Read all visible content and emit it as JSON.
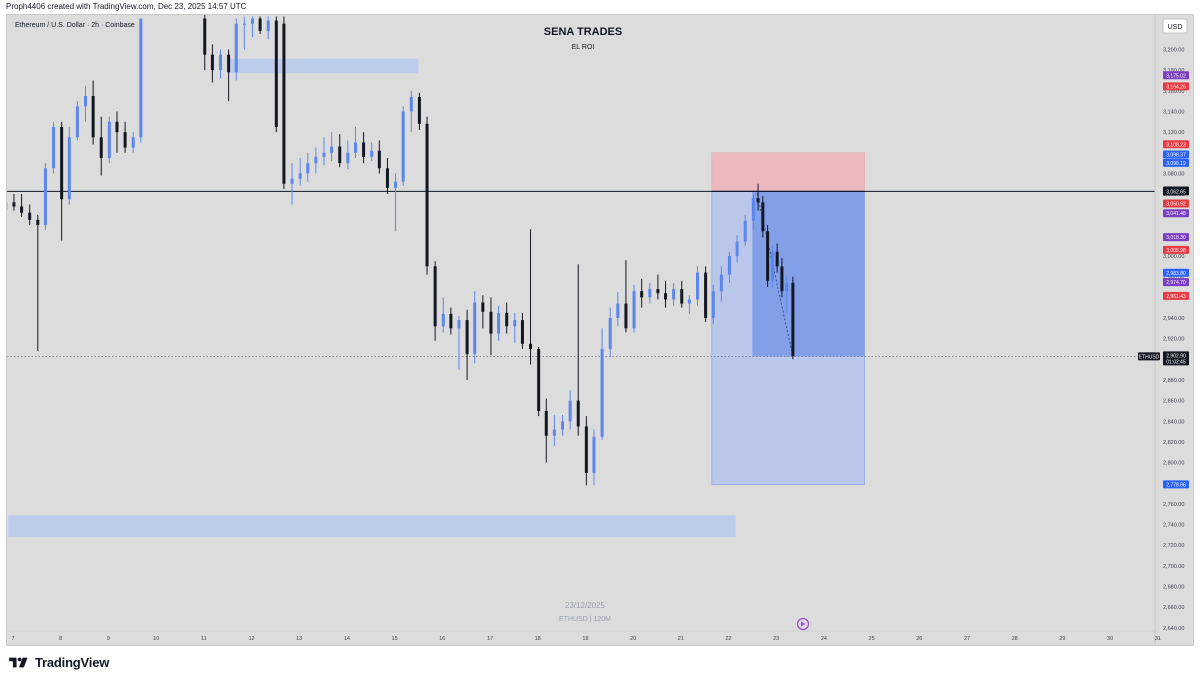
{
  "credit": "Proph4406 created with TradingView.com, Dec 23, 2025 14:57 UTC",
  "symbol_line": "Ethereum / U.S. Dollar · 2h · Coinbase",
  "headline": "SENA TRADES",
  "subheadline": "EL ROI",
  "currency_button": "USD",
  "watermark_date": "23/12/2025",
  "watermark_symbol": "ETHUSD | 120M",
  "brand": "TradingView",
  "icons": {
    "brand_logo": "tradingview-logo-icon",
    "replay": "replay-icon"
  },
  "colors": {
    "bull": "#5b86f0",
    "bear": "#131722",
    "target_zone": "#3d6ee3",
    "stop_zone": "#eeb4b8",
    "zones": "#b9c9ef",
    "price_tag_bg": "#131722"
  },
  "chart_data": {
    "type": "candlestick",
    "symbol": "ETHUSD",
    "timeframe": "2h",
    "exchange": "Coinbase",
    "ylim": [
      2620,
      3220
    ],
    "y_ticks": [
      "3,200.00",
      "3,180.00",
      "3,160.00",
      "3,140.00",
      "3,120.00",
      "3,100.00",
      "3,080.00",
      "3,060.00",
      "3,040.00",
      "3,020.00",
      "3,000.00",
      "2,980.00",
      "2,960.00",
      "2,940.00",
      "2,920.00",
      "2,900.00",
      "2,880.00",
      "2,860.00",
      "2,840.00",
      "2,820.00",
      "2,800.00",
      "2,780.00",
      "2,760.00",
      "2,740.00",
      "2,720.00",
      "2,700.00",
      "2,680.00",
      "2,660.00",
      "2,640.00"
    ],
    "x_ticks": [
      "7",
      "8",
      "9",
      "10",
      "11",
      "12",
      "13",
      "14",
      "15",
      "16",
      "17",
      "18",
      "19",
      "20",
      "21",
      "22",
      "23",
      "24",
      "25",
      "26",
      "27",
      "28",
      "29",
      "30",
      "31"
    ],
    "price_labels": [
      {
        "text": "3,175.02",
        "value": 3175.02,
        "color": "#7b3fc4"
      },
      {
        "text": "3,164.26",
        "value": 3164.26,
        "color": "#e53b43"
      },
      {
        "text": "3,108.23",
        "value": 3108.23,
        "color": "#e53b43"
      },
      {
        "text": "3,098.37",
        "value": 3098.37,
        "color": "#2962ff"
      },
      {
        "text": "3,090.19",
        "value": 3090.19,
        "color": "#2962ff"
      },
      {
        "text": "3,063.51",
        "value": 3063.51,
        "color": "#131722"
      },
      {
        "text": "3,062.65",
        "value": 3062.65,
        "color": "#131722"
      },
      {
        "text": "3,050.92",
        "value": 3050.92,
        "color": "#e53b43"
      },
      {
        "text": "3,041.48",
        "value": 3041.48,
        "color": "#7b3fc4"
      },
      {
        "text": "3,018.30",
        "value": 3018.3,
        "color": "#7b3fc4"
      },
      {
        "text": "3,005.98",
        "value": 3005.98,
        "color": "#e53b43"
      },
      {
        "text": "2,983.80",
        "value": 2983.8,
        "color": "#2962ff"
      },
      {
        "text": "2,974.70",
        "value": 2974.7,
        "color": "#7b3fc4"
      },
      {
        "text": "2,961.43",
        "value": 2961.43,
        "color": "#e53b43"
      },
      {
        "text": "2,778.86",
        "value": 2778.86,
        "color": "#2962ff"
      }
    ],
    "current_price": {
      "symbol": "ETHUSD",
      "price": "2,902.90",
      "countdown": "01:02:45",
      "value": 2902.9
    },
    "horizontal_line": 3062.65,
    "position": {
      "entry": 3062.65,
      "stop": 3100,
      "target": 2778.86,
      "start_day": 21.65,
      "end_day": 24.85
    },
    "zones": [
      {
        "from_day": 11.5,
        "to_day": 15.5,
        "low": 3177,
        "high": 3191
      },
      {
        "from_day": 6.9,
        "to_day": 22.15,
        "low": 2728,
        "high": 2749
      }
    ],
    "candles": [
      [
        6.85,
        3045,
        3058,
        3040,
        3052
      ],
      [
        7.02,
        3052,
        3060,
        3044,
        3048
      ],
      [
        7.18,
        3048,
        3060,
        3038,
        3042
      ],
      [
        7.35,
        3042,
        3050,
        3030,
        3035
      ],
      [
        7.52,
        3035,
        3040,
        2908,
        3030
      ],
      [
        7.68,
        3030,
        3090,
        3025,
        3085
      ],
      [
        7.85,
        3085,
        3130,
        3080,
        3125
      ],
      [
        8.02,
        3125,
        3130,
        3015,
        3055
      ],
      [
        8.18,
        3055,
        3125,
        3050,
        3115
      ],
      [
        8.35,
        3115,
        3150,
        3112,
        3145
      ],
      [
        8.52,
        3145,
        3165,
        3130,
        3155
      ],
      [
        8.68,
        3155,
        3170,
        3108,
        3115
      ],
      [
        8.85,
        3115,
        3135,
        3078,
        3095
      ],
      [
        9.02,
        3095,
        3135,
        3090,
        3130
      ],
      [
        9.18,
        3130,
        3140,
        3100,
        3120
      ],
      [
        9.35,
        3120,
        3130,
        3100,
        3105
      ],
      [
        9.52,
        3105,
        3120,
        3100,
        3115
      ],
      [
        9.68,
        3115,
        3230,
        3110,
        3230
      ],
      [
        11.02,
        3230,
        3235,
        3180,
        3195
      ],
      [
        11.18,
        3195,
        3205,
        3168,
        3180
      ],
      [
        11.35,
        3180,
        3200,
        3172,
        3195
      ],
      [
        11.52,
        3195,
        3200,
        3150,
        3178
      ],
      [
        11.68,
        3178,
        3230,
        3170,
        3225
      ],
      [
        11.85,
        3225,
        3232,
        3200,
        3225
      ],
      [
        12.02,
        3225,
        3232,
        3212,
        3230
      ],
      [
        12.18,
        3230,
        3232,
        3215,
        3218
      ],
      [
        12.35,
        3218,
        3232,
        3210,
        3228
      ],
      [
        12.52,
        3228,
        3232,
        3120,
        3125
      ],
      [
        12.68,
        3225,
        3232,
        3065,
        3070
      ],
      [
        12.85,
        3070,
        3090,
        3050,
        3075
      ],
      [
        13.02,
        3075,
        3095,
        3068,
        3080
      ],
      [
        13.18,
        3080,
        3100,
        3072,
        3090
      ],
      [
        13.35,
        3090,
        3105,
        3080,
        3096
      ],
      [
        13.52,
        3096,
        3115,
        3088,
        3100
      ],
      [
        13.68,
        3100,
        3120,
        3092,
        3106
      ],
      [
        13.85,
        3106,
        3118,
        3086,
        3090
      ],
      [
        14.02,
        3090,
        3112,
        3084,
        3100
      ],
      [
        14.18,
        3100,
        3125,
        3095,
        3110
      ],
      [
        14.35,
        3110,
        3120,
        3090,
        3096
      ],
      [
        14.52,
        3096,
        3110,
        3092,
        3102
      ],
      [
        14.68,
        3102,
        3112,
        3080,
        3085
      ],
      [
        14.85,
        3085,
        3095,
        3060,
        3066
      ],
      [
        15.02,
        3066,
        3080,
        3024,
        3072
      ],
      [
        15.18,
        3072,
        3145,
        3068,
        3140
      ],
      [
        15.35,
        3140,
        3160,
        3120,
        3154
      ],
      [
        15.52,
        3154,
        3158,
        3122,
        3128
      ],
      [
        15.68,
        3128,
        3135,
        2982,
        2990
      ],
      [
        15.85,
        2990,
        2995,
        2918,
        2932
      ],
      [
        16.02,
        2932,
        2960,
        2926,
        2944
      ],
      [
        16.18,
        2944,
        2950,
        2924,
        2930
      ],
      [
        16.35,
        2930,
        2942,
        2890,
        2938
      ],
      [
        16.52,
        2938,
        2948,
        2880,
        2905
      ],
      [
        16.68,
        2905,
        2966,
        2896,
        2955
      ],
      [
        16.85,
        2955,
        2962,
        2930,
        2946
      ],
      [
        17.02,
        2946,
        2960,
        2904,
        2925
      ],
      [
        17.18,
        2925,
        2952,
        2918,
        2945
      ],
      [
        17.35,
        2945,
        2955,
        2925,
        2932
      ],
      [
        17.52,
        2932,
        2945,
        2916,
        2938
      ],
      [
        17.68,
        2938,
        2945,
        2910,
        2915
      ],
      [
        17.85,
        2915,
        3026,
        2895,
        2910
      ],
      [
        18.02,
        2910,
        2912,
        2845,
        2850
      ],
      [
        18.18,
        2850,
        2862,
        2800,
        2826
      ],
      [
        18.35,
        2826,
        2846,
        2816,
        2832
      ],
      [
        18.52,
        2832,
        2846,
        2826,
        2840
      ],
      [
        18.68,
        2840,
        2870,
        2832,
        2860
      ],
      [
        18.85,
        2860,
        2992,
        2826,
        2835
      ],
      [
        19.02,
        2835,
        2845,
        2778,
        2790
      ],
      [
        19.18,
        2790,
        2832,
        2778,
        2825
      ],
      [
        19.35,
        2825,
        2930,
        2822,
        2910
      ],
      [
        19.52,
        2910,
        2950,
        2902,
        2940
      ],
      [
        19.68,
        2940,
        2965,
        2932,
        2954
      ],
      [
        19.85,
        2954,
        2996,
        2926,
        2930
      ],
      [
        20.02,
        2930,
        2972,
        2926,
        2966
      ],
      [
        20.18,
        2966,
        2978,
        2950,
        2960
      ],
      [
        20.35,
        2960,
        2974,
        2954,
        2968
      ],
      [
        20.52,
        2968,
        2982,
        2958,
        2964
      ],
      [
        20.68,
        2964,
        2976,
        2950,
        2958
      ],
      [
        20.85,
        2958,
        2974,
        2952,
        2968
      ],
      [
        21.02,
        2968,
        2976,
        2950,
        2954
      ],
      [
        21.18,
        2954,
        2962,
        2944,
        2958
      ],
      [
        21.35,
        2958,
        2990,
        2952,
        2984
      ],
      [
        21.52,
        2984,
        2990,
        2936,
        2940
      ],
      [
        21.68,
        2940,
        2972,
        2934,
        2966
      ],
      [
        21.85,
        2966,
        2990,
        2956,
        2982
      ],
      [
        22.02,
        2982,
        3004,
        2974,
        3000
      ],
      [
        22.18,
        3000,
        3020,
        2994,
        3014
      ],
      [
        22.35,
        3014,
        3040,
        3010,
        3034
      ],
      [
        22.52,
        3034,
        3060,
        3026,
        3056
      ],
      [
        22.62,
        3056,
        3070,
        3044,
        3052
      ],
      [
        22.72,
        3052,
        3058,
        3018,
        3024
      ],
      [
        22.82,
        3024,
        3030,
        2970,
        2976
      ],
      [
        22.92,
        2976,
        3010,
        2970,
        3004
      ],
      [
        23.02,
        3004,
        3012,
        2984,
        2990
      ],
      [
        23.12,
        2990,
        2998,
        2960,
        2966
      ],
      [
        23.22,
        2966,
        2980,
        2944,
        2974
      ],
      [
        23.35,
        2974,
        2980,
        2900,
        2903
      ]
    ]
  }
}
